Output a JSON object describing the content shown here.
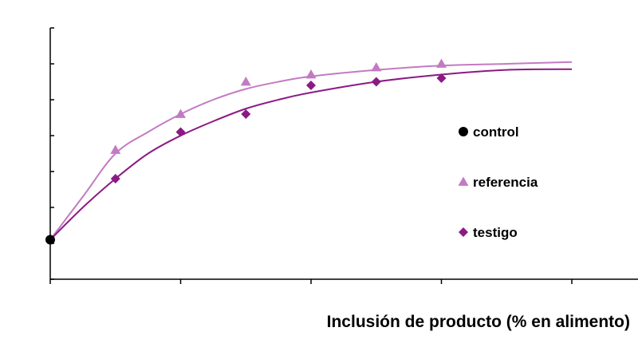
{
  "chart_data": {
    "type": "scatter",
    "title": "",
    "xlabel": "Inclusión de producto (% en alimento)",
    "ylabel": "",
    "x_ticks": [
      0,
      1,
      2,
      3,
      4
    ],
    "xlim": [
      0,
      4.5
    ],
    "ylim": [
      0,
      7
    ],
    "grid": false,
    "legend_position": "right",
    "series": [
      {
        "name": "control",
        "marker": "circle",
        "color": "#000000",
        "points": [
          [
            0,
            1.1
          ]
        ]
      },
      {
        "name": "referencia",
        "marker": "triangle",
        "color": "#c27bc2",
        "curve_color": "#c27bc2",
        "points": [
          [
            0,
            1.1
          ],
          [
            0.5,
            3.6
          ],
          [
            1.0,
            4.6
          ],
          [
            1.5,
            5.5
          ],
          [
            2.0,
            5.7
          ],
          [
            2.5,
            5.9
          ],
          [
            3.0,
            6.0
          ]
        ],
        "curve": [
          [
            0,
            1.1
          ],
          [
            0.25,
            2.3
          ],
          [
            0.5,
            3.5
          ],
          [
            0.75,
            4.1
          ],
          [
            1.0,
            4.6
          ],
          [
            1.25,
            5.0
          ],
          [
            1.5,
            5.3
          ],
          [
            1.75,
            5.5
          ],
          [
            2.0,
            5.65
          ],
          [
            2.5,
            5.83
          ],
          [
            3.0,
            5.95
          ],
          [
            3.5,
            6.0
          ],
          [
            4.0,
            6.05
          ]
        ]
      },
      {
        "name": "testigo",
        "marker": "diamond",
        "color": "#8b1a84",
        "curve_color": "#8b1a84",
        "points": [
          [
            0,
            1.1
          ],
          [
            0.5,
            2.8
          ],
          [
            1.0,
            4.1
          ],
          [
            1.5,
            4.6
          ],
          [
            2.0,
            5.4
          ],
          [
            2.5,
            5.5
          ],
          [
            3.0,
            5.6
          ]
        ],
        "curve": [
          [
            0,
            1.1
          ],
          [
            0.25,
            2.0
          ],
          [
            0.5,
            2.8
          ],
          [
            0.75,
            3.5
          ],
          [
            1.0,
            4.0
          ],
          [
            1.25,
            4.4
          ],
          [
            1.5,
            4.75
          ],
          [
            1.75,
            5.0
          ],
          [
            2.0,
            5.2
          ],
          [
            2.5,
            5.5
          ],
          [
            3.0,
            5.7
          ],
          [
            3.5,
            5.83
          ],
          [
            4.0,
            5.85
          ]
        ]
      }
    ]
  }
}
